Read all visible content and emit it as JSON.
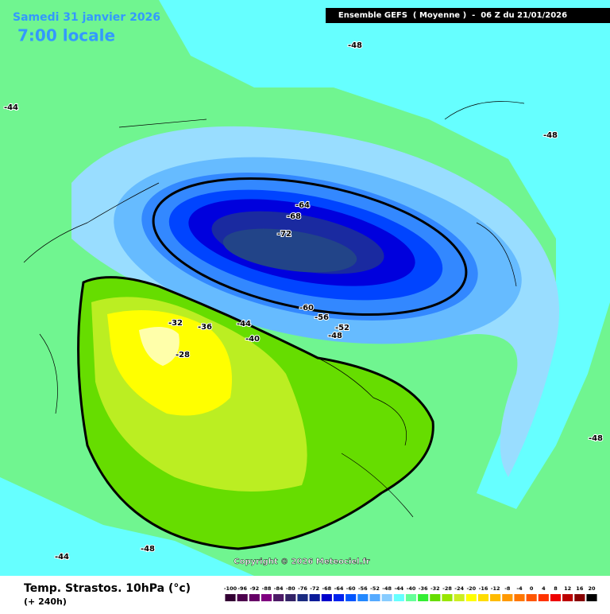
{
  "header": {
    "date": "Samedi 31 janvier 2026",
    "local_time": "7:00 locale",
    "run": "Ensemble GEFS  ( Moyenne )  -  06 Z du 21/01/2026"
  },
  "copyright": "Copyright © 2026 Meteociel.fr",
  "footer": {
    "title": "Temp. Strastos. 10hPa (°c)",
    "lead": "(+ 240h)"
  },
  "contour_labels": [
    -48,
    -44,
    -48,
    -64,
    -68,
    -72,
    -60,
    -56,
    -52,
    -48,
    -44,
    -40,
    -36,
    -32,
    -28,
    -48,
    -44,
    -48
  ],
  "scale": {
    "labels": [
      -100,
      -96,
      -92,
      -88,
      -84,
      -80,
      -76,
      -72,
      -68,
      -64,
      -60,
      -56,
      -52,
      -48,
      -44,
      -40,
      -36,
      -32,
      -28,
      -24,
      -20,
      -16,
      -12,
      -8,
      -4,
      0,
      4,
      8,
      12,
      16,
      20
    ],
    "colors": [
      "#330033",
      "#4d004d",
      "#660066",
      "#800080",
      "#4d1a66",
      "#332266",
      "#1a2a80",
      "#0a1a99",
      "#0000cc",
      "#0022ee",
      "#0055ff",
      "#2288ff",
      "#55aaff",
      "#88ccff",
      "#66ffff",
      "#66ff99",
      "#33ee33",
      "#66dd00",
      "#99e600",
      "#ccee22",
      "#ffff00",
      "#ffdd00",
      "#ffbb00",
      "#ff9900",
      "#ff7700",
      "#ff5500",
      "#ff3300",
      "#ee0000",
      "#bb0000",
      "#880000",
      "#000000"
    ]
  }
}
